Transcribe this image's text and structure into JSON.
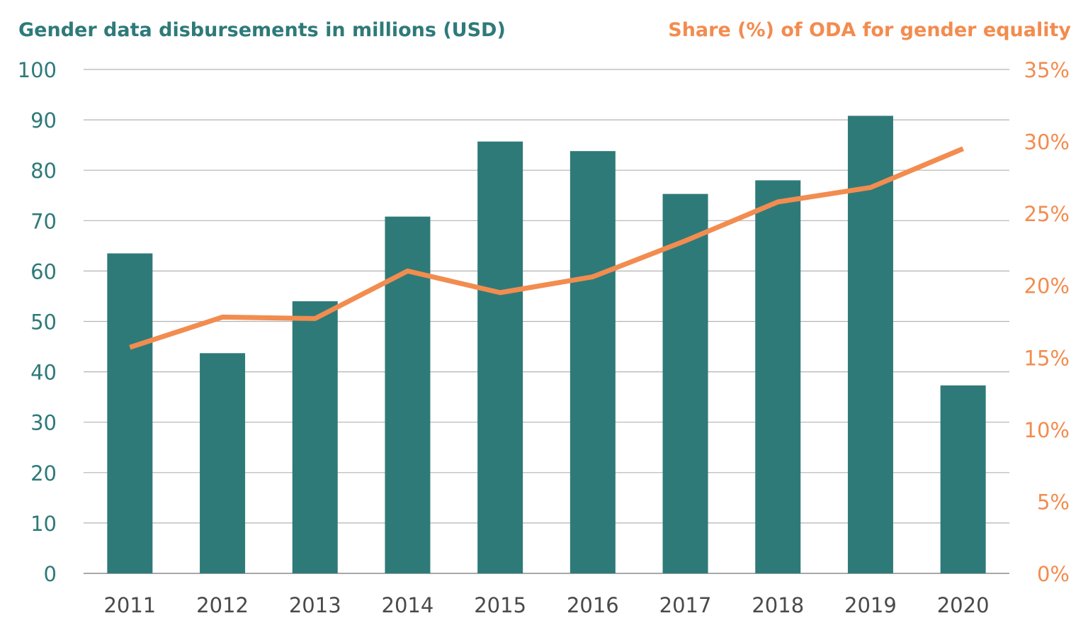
{
  "chart_data": {
    "type": "bar",
    "title_left": "Gender data disbursements in millions (USD)",
    "title_right": "Share (%) of ODA for gender equality",
    "categories": [
      "2011",
      "2012",
      "2013",
      "2014",
      "2015",
      "2016",
      "2017",
      "2018",
      "2019",
      "2020"
    ],
    "series": [
      {
        "type": "bar",
        "axis": "left",
        "values": [
          63.5,
          43.7,
          54.0,
          70.8,
          85.7,
          83.8,
          75.3,
          78.0,
          90.8,
          37.3
        ]
      },
      {
        "type": "line",
        "axis": "right",
        "values": [
          15.7,
          17.8,
          17.7,
          21.0,
          19.5,
          20.6,
          23.1,
          25.8,
          26.8,
          29.5
        ]
      }
    ],
    "y_left": {
      "ylim": [
        0,
        100
      ],
      "ticks": [
        0,
        10,
        20,
        30,
        40,
        50,
        60,
        70,
        80,
        90,
        100
      ],
      "tick_labels": [
        "0",
        "10",
        "20",
        "30",
        "40",
        "50",
        "60",
        "70",
        "80",
        "90",
        "100"
      ]
    },
    "y_right": {
      "ylim": [
        0,
        35
      ],
      "ticks": [
        0,
        5,
        10,
        15,
        20,
        25,
        30,
        35
      ],
      "tick_labels": [
        "0%",
        "5%",
        "10%",
        "15%",
        "20%",
        "25%",
        "30%",
        "35%"
      ]
    },
    "grid": true,
    "legend": "none"
  },
  "colors": {
    "bar": "#2e7a79",
    "line": "#f28c4f",
    "left_text": "#2e7a79",
    "right_text": "#f28c4f",
    "category_text": "#4a4a4a",
    "grid": "#b3b3b3"
  }
}
